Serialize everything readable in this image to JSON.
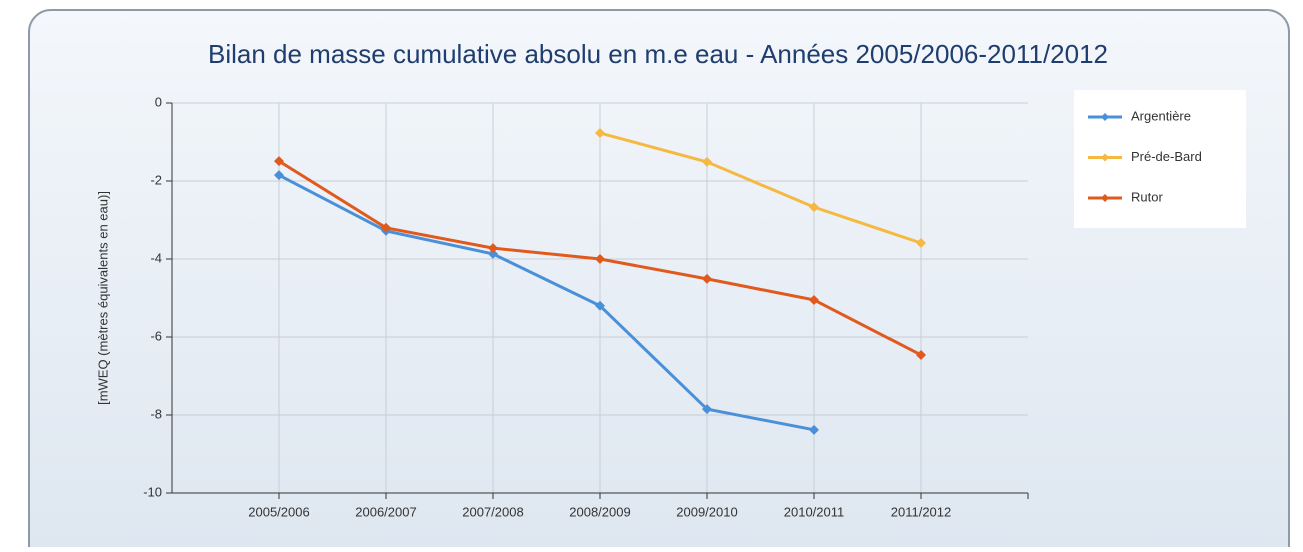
{
  "chart_data": {
    "type": "line",
    "title": "Bilan de masse cumulative absolu en m.e eau - Années 2005/2006-2011/2012",
    "ylabel": "[mWEQ (mètres équivalents en eau)]",
    "categories": [
      "2005/2006",
      "2006/2007",
      "2007/2008",
      "2008/2009",
      "2009/2010",
      "2010/2011",
      "2011/2012"
    ],
    "series": [
      {
        "name": "Argentière",
        "color": "#4a90d9",
        "values": [
          -1.85,
          -3.28,
          -3.87,
          -5.2,
          -7.85,
          -8.38,
          null
        ]
      },
      {
        "name": "Pré-de-Bard",
        "color": "#f5b942",
        "values": [
          null,
          null,
          null,
          -0.77,
          -1.51,
          -2.67,
          -3.59
        ]
      },
      {
        "name": "Rutor",
        "color": "#e05a1e",
        "values": [
          -1.49,
          -3.2,
          -3.72,
          -4.0,
          -4.51,
          -5.05,
          -6.46
        ]
      }
    ],
    "ylim": [
      -10,
      0
    ],
    "yticks": [
      0,
      -2,
      -4,
      -6,
      -8,
      -10
    ],
    "grid": true,
    "legend": "right"
  }
}
